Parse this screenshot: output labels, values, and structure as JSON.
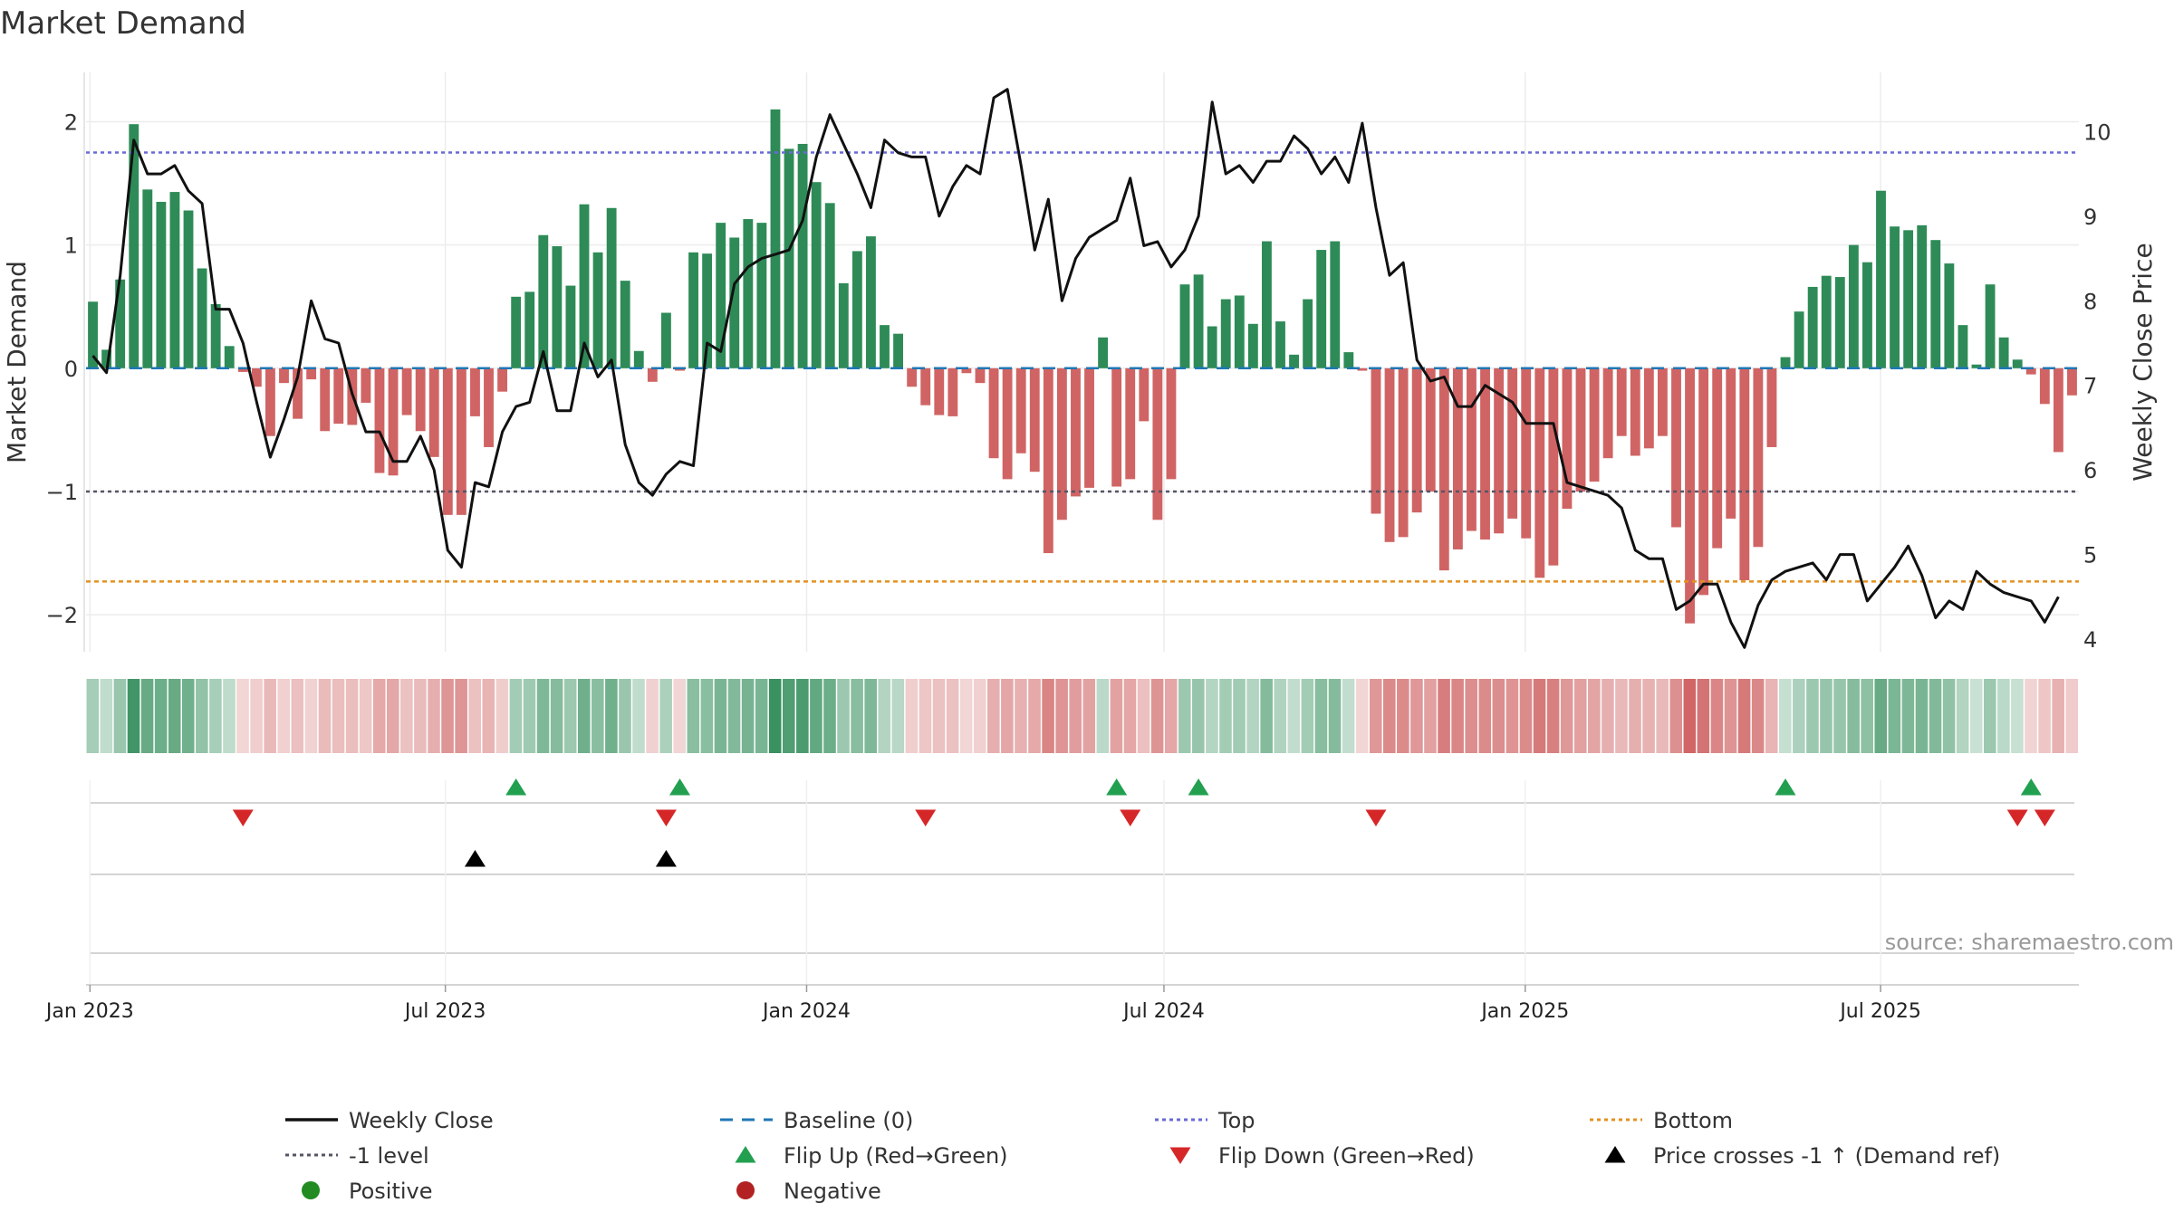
{
  "chart_data": {
    "type": "bar",
    "title": "Market Demand",
    "ylabel": "Market Demand",
    "y2label": "Weekly Close Price",
    "source": "source: sharemaestro.com",
    "ylim": [
      -2.3,
      2.4
    ],
    "y2lim": [
      3.85,
      10.7
    ],
    "yticks": [
      -2,
      -1,
      0,
      1,
      2
    ],
    "y2ticks": [
      4,
      5,
      6,
      7,
      8,
      9,
      10
    ],
    "start_date": "2022-12-30",
    "end_date": "2025-10-10",
    "xticks": [
      {
        "label": "Jan 2023",
        "date": "2023-01-01"
      },
      {
        "label": "Jul 2023",
        "date": "2023-07-01"
      },
      {
        "label": "Jan 2024",
        "date": "2024-01-01"
      },
      {
        "label": "Jul 2024",
        "date": "2024-07-01"
      },
      {
        "label": "Jan 2025",
        "date": "2025-01-01"
      },
      {
        "label": "Jul 2025",
        "date": "2025-07-01"
      }
    ],
    "levels": {
      "top": 1.75,
      "minus_one": -1,
      "bottom": -1.73,
      "baseline": 0
    },
    "colors": {
      "positive": "#2e8b57",
      "negative": "#cd5c5c",
      "close": "#111111",
      "top": "#6a6ad6",
      "minus_one": "#555566",
      "bottom": "#e39220",
      "baseline": "#1f77b4",
      "flip_up": "#22a050",
      "flip_down": "#d62728",
      "cross": "#000000",
      "pos_dot": "#228b22",
      "neg_dot": "#b22222"
    },
    "demand": [
      0.54,
      0.15,
      0.72,
      1.98,
      1.45,
      1.35,
      1.43,
      1.28,
      0.81,
      0.52,
      0.18,
      -0.03,
      -0.15,
      -0.55,
      -0.12,
      -0.41,
      -0.09,
      -0.51,
      -0.45,
      -0.46,
      -0.28,
      -0.85,
      -0.87,
      -0.38,
      -0.51,
      -0.72,
      -1.19,
      -1.19,
      -0.39,
      -0.64,
      -0.19,
      0.58,
      0.62,
      1.08,
      0.99,
      0.67,
      1.33,
      0.94,
      1.3,
      0.71,
      0.14,
      -0.11,
      0.45,
      -0.02,
      0.94,
      0.93,
      1.18,
      1.06,
      1.21,
      1.18,
      2.1,
      1.78,
      1.82,
      1.51,
      1.34,
      0.69,
      0.95,
      1.07,
      0.35,
      0.28,
      -0.15,
      -0.3,
      -0.38,
      -0.39,
      -0.04,
      -0.12,
      -0.73,
      -0.9,
      -0.69,
      -0.84,
      -1.5,
      -1.23,
      -1.04,
      -0.97,
      0.25,
      -0.96,
      -0.9,
      -0.43,
      -1.23,
      -0.9,
      0.68,
      0.76,
      0.34,
      0.56,
      0.59,
      0.36,
      1.03,
      0.38,
      0.11,
      0.56,
      0.96,
      1.03,
      0.13,
      -0.02,
      -1.18,
      -1.41,
      -1.37,
      -1.17,
      -1.0,
      -1.64,
      -1.47,
      -1.32,
      -1.39,
      -1.34,
      -1.22,
      -1.38,
      -1.7,
      -1.6,
      -1.14,
      -1.0,
      -0.92,
      -0.73,
      -0.55,
      -0.71,
      -0.65,
      -0.55,
      -1.29,
      -2.07,
      -1.84,
      -1.46,
      -1.22,
      -1.72,
      -1.45,
      -0.64,
      0.09,
      0.46,
      0.66,
      0.75,
      0.74,
      1.0,
      0.86,
      1.44,
      1.15,
      1.12,
      1.16,
      1.04,
      0.85,
      0.35,
      0.03,
      0.68,
      0.25,
      0.07,
      -0.05,
      -0.29,
      -0.68,
      -0.22
    ],
    "close": [
      7.35,
      7.15,
      8.3,
      9.9,
      9.5,
      9.5,
      9.6,
      9.3,
      9.15,
      7.9,
      7.9,
      7.5,
      6.8,
      6.15,
      6.6,
      7.1,
      8.0,
      7.55,
      7.5,
      6.9,
      6.45,
      6.45,
      6.1,
      6.1,
      6.4,
      6.0,
      5.05,
      4.85,
      5.85,
      5.8,
      6.45,
      6.75,
      6.8,
      7.4,
      6.7,
      6.7,
      7.5,
      7.1,
      7.3,
      6.3,
      5.85,
      5.7,
      5.95,
      6.1,
      6.05,
      7.5,
      7.4,
      8.2,
      8.4,
      8.5,
      8.55,
      8.6,
      8.95,
      9.7,
      10.2,
      9.85,
      9.5,
      9.1,
      9.9,
      9.75,
      9.7,
      9.7,
      9.0,
      9.35,
      9.6,
      9.5,
      10.4,
      10.5,
      9.6,
      8.6,
      9.2,
      8.0,
      8.5,
      8.75,
      8.85,
      8.95,
      9.45,
      8.65,
      8.7,
      8.4,
      8.6,
      9.0,
      10.35,
      9.5,
      9.6,
      9.4,
      9.65,
      9.65,
      9.95,
      9.8,
      9.5,
      9.7,
      9.4,
      10.1,
      9.1,
      8.3,
      8.45,
      7.3,
      7.05,
      7.1,
      6.75,
      6.75,
      7.0,
      6.9,
      6.8,
      6.55,
      6.55,
      6.55,
      5.85,
      5.8,
      5.75,
      5.7,
      5.55,
      5.05,
      4.95,
      4.95,
      4.35,
      4.45,
      4.65,
      4.65,
      4.2,
      3.9,
      4.4,
      4.7,
      4.8,
      4.85,
      4.9,
      4.7,
      5.0,
      5.0,
      4.45,
      4.65,
      4.85,
      5.1,
      4.75,
      4.25,
      4.45,
      4.35,
      4.8,
      4.65,
      4.55,
      4.5,
      4.45,
      4.2,
      4.5
    ],
    "flip_up_idx": [
      31,
      43,
      75,
      81,
      124,
      142
    ],
    "flip_down_idx": [
      11,
      42,
      61,
      76,
      94,
      141,
      143
    ],
    "cross_idx": [
      28,
      42
    ]
  },
  "legend": {
    "items": [
      {
        "label": "Weekly Close",
        "symbol": "solid-line",
        "color": "#111111"
      },
      {
        "label": "Baseline (0)",
        "symbol": "dash-line",
        "color": "#1f77b4"
      },
      {
        "label": "Top",
        "symbol": "dot-line",
        "color": "#6a6ad6"
      },
      {
        "label": "Bottom",
        "symbol": "dot-line",
        "color": "#e39220"
      },
      {
        "label": "-1 level",
        "symbol": "dot-line",
        "color": "#555566"
      },
      {
        "label": "Flip Up (Red→Green)",
        "symbol": "triangle-up",
        "color": "#22a050"
      },
      {
        "label": "Flip Down (Green→Red)",
        "symbol": "triangle-down",
        "color": "#d62728"
      },
      {
        "label": "Price crosses -1 ↑ (Demand ref)",
        "symbol": "triangle-up",
        "color": "#000000"
      },
      {
        "label": "Positive",
        "symbol": "dot",
        "color": "#228b22"
      },
      {
        "label": "Negative",
        "symbol": "dot",
        "color": "#b22222"
      }
    ]
  }
}
